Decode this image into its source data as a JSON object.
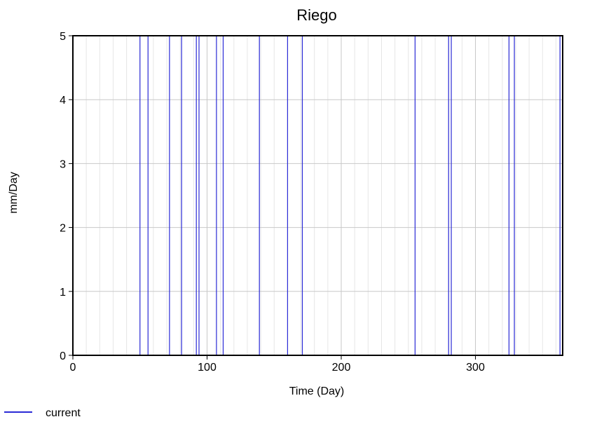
{
  "chart_data": {
    "type": "line",
    "title": "Riego",
    "xlabel": "Time (Day)",
    "ylabel": "mm/Day",
    "xlim": [
      0,
      365
    ],
    "ylim": [
      0,
      5
    ],
    "x_ticks": [
      0,
      100,
      200,
      300
    ],
    "x_tick_labels": [
      "0",
      "100",
      "200",
      "300"
    ],
    "y_ticks": [
      0,
      1,
      2,
      3,
      4,
      5
    ],
    "y_tick_labels": [
      "0",
      "1",
      "2",
      "3",
      "4",
      "5"
    ],
    "x_minor_grid_step": 10,
    "grid": true,
    "legend_position": "bottom-left",
    "series": [
      {
        "name": "current",
        "color": "#2b2bd6",
        "step_segments": [
          {
            "start": 0,
            "end": 50,
            "value": 0
          },
          {
            "start": 50,
            "end": 56,
            "value": 5
          },
          {
            "start": 56,
            "end": 72,
            "value": 0
          },
          {
            "start": 72,
            "end": 81,
            "value": 5
          },
          {
            "start": 81,
            "end": 92,
            "value": 0
          },
          {
            "start": 92,
            "end": 94,
            "value": 5
          },
          {
            "start": 94,
            "end": 107,
            "value": 0
          },
          {
            "start": 107,
            "end": 112,
            "value": 5
          },
          {
            "start": 112,
            "end": 139,
            "value": 0
          },
          {
            "start": 139,
            "end": 160,
            "value": 5
          },
          {
            "start": 160,
            "end": 171,
            "value": 0
          },
          {
            "start": 171,
            "end": 255,
            "value": 5
          },
          {
            "start": 255,
            "end": 280,
            "value": 0
          },
          {
            "start": 280,
            "end": 282,
            "value": 5
          },
          {
            "start": 282,
            "end": 325,
            "value": 0
          },
          {
            "start": 325,
            "end": 329,
            "value": 5
          },
          {
            "start": 329,
            "end": 363,
            "value": 0
          },
          {
            "start": 363,
            "end": 365,
            "value": 5
          }
        ]
      }
    ]
  }
}
